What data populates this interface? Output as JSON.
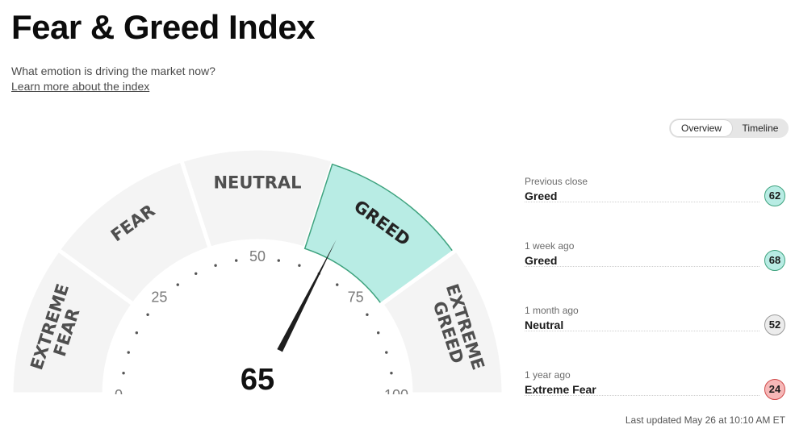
{
  "header": {
    "title": "Fear & Greed Index",
    "subtitle": "What emotion is driving the market now?",
    "learn_more_link": "Learn more about the index"
  },
  "view_toggle": {
    "options": [
      "Overview",
      "Timeline"
    ],
    "selected": "Overview"
  },
  "gauge": {
    "value": 65,
    "value_label": "65",
    "scale_labels": [
      "0",
      "25",
      "50",
      "75",
      "100"
    ],
    "segments": [
      {
        "line1": "EXTREME",
        "line2": "FEAR"
      },
      {
        "line1": "FEAR"
      },
      {
        "line1": "NEUTRAL"
      },
      {
        "line1": "GREED",
        "active": true
      },
      {
        "line1": "EXTREME",
        "line2": "GREED"
      }
    ],
    "active_color": "#b8ece4",
    "active_border_color": "#3fa37f",
    "inactive_color": "#f4f4f4"
  },
  "history": [
    {
      "label": "Previous close",
      "status": "Greed",
      "value": "62",
      "badge_bg": "#b8ece4",
      "badge_border": "#3fa37f"
    },
    {
      "label": "1 week ago",
      "status": "Greed",
      "value": "68",
      "badge_bg": "#b8ece4",
      "badge_border": "#3fa37f"
    },
    {
      "label": "1 month ago",
      "status": "Neutral",
      "value": "52",
      "badge_bg": "#ececec",
      "badge_border": "#9a9a9a"
    },
    {
      "label": "1 year ago",
      "status": "Extreme Fear",
      "value": "24",
      "badge_bg": "#f6b8b8",
      "badge_border": "#d04a4a"
    }
  ],
  "last_updated": "Last updated May 26 at 10:10 AM ET"
}
